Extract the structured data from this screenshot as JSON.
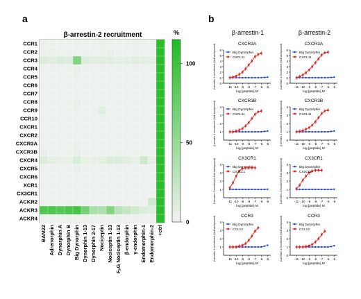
{
  "panel_labels": {
    "a": "a",
    "b": "b"
  },
  "colors": {
    "heat_low": "#f2f2f2",
    "heat_high": "#22bb22",
    "red_series": "#e0231f",
    "blue_series": "#2340d0"
  },
  "chart_data": [
    {
      "type": "heatmap",
      "title": "β-arrestin-2 recruitment",
      "rows": [
        "CCR1",
        "CCR2",
        "CCR3",
        "CCR4",
        "CCR5",
        "CCR6",
        "CCR7",
        "CCR8",
        "CCR9",
        "CCR10",
        "CXCR1",
        "CXCR2",
        "CXCR3A",
        "CXCR3B",
        "CXCR4",
        "CXCR5",
        "CXCR6",
        "XCR1",
        "CX3CR1",
        "ACKR2",
        "ACKR3",
        "ACKR4"
      ],
      "columns": [
        "BAM22",
        "Adrenorphin",
        "Dynorphin A",
        "Dynorphin B",
        "Big Dynorphin",
        "Dynorphin 1-13",
        "Dynorphin 2-17",
        "Nociceptin",
        "Nociceptin 1-13",
        "FₚG Nociceptin 1-13",
        "β-endorphin",
        "γ-endorphin",
        "Endomorphin-1",
        "Endomorphin-2",
        "+ctrl"
      ],
      "values": [
        [
          4,
          3,
          3,
          3,
          4,
          3,
          3,
          4,
          3,
          3,
          3,
          4,
          3,
          3,
          110
        ],
        [
          3,
          4,
          3,
          3,
          3,
          3,
          3,
          3,
          4,
          3,
          3,
          3,
          3,
          3,
          110
        ],
        [
          12,
          10,
          14,
          12,
          62,
          12,
          10,
          10,
          10,
          8,
          8,
          10,
          9,
          8,
          110
        ],
        [
          3,
          3,
          3,
          3,
          4,
          3,
          3,
          3,
          3,
          3,
          3,
          3,
          3,
          3,
          110
        ],
        [
          3,
          3,
          3,
          3,
          4,
          3,
          3,
          3,
          3,
          3,
          3,
          3,
          3,
          3,
          110
        ],
        [
          3,
          3,
          3,
          3,
          3,
          3,
          3,
          3,
          3,
          3,
          3,
          3,
          3,
          3,
          110
        ],
        [
          3,
          3,
          3,
          3,
          3,
          3,
          3,
          3,
          3,
          3,
          3,
          3,
          3,
          3,
          110
        ],
        [
          3,
          3,
          3,
          3,
          4,
          3,
          3,
          3,
          3,
          3,
          3,
          3,
          3,
          3,
          110
        ],
        [
          3,
          3,
          3,
          3,
          4,
          3,
          3,
          10,
          3,
          3,
          3,
          3,
          3,
          3,
          110
        ],
        [
          3,
          3,
          3,
          3,
          3,
          3,
          3,
          3,
          3,
          3,
          3,
          3,
          3,
          3,
          110
        ],
        [
          3,
          3,
          3,
          3,
          3,
          3,
          3,
          3,
          3,
          3,
          3,
          3,
          3,
          3,
          110
        ],
        [
          3,
          3,
          3,
          3,
          3,
          3,
          3,
          3,
          3,
          3,
          3,
          3,
          3,
          3,
          110
        ],
        [
          3,
          3,
          3,
          3,
          4,
          3,
          3,
          3,
          3,
          3,
          3,
          3,
          3,
          3,
          110
        ],
        [
          4,
          3,
          3,
          3,
          4,
          3,
          3,
          3,
          3,
          3,
          3,
          3,
          3,
          3,
          110
        ],
        [
          12,
          8,
          6,
          6,
          14,
          6,
          6,
          8,
          12,
          12,
          10,
          6,
          20,
          8,
          110
        ],
        [
          3,
          3,
          3,
          3,
          4,
          3,
          3,
          3,
          3,
          3,
          3,
          3,
          3,
          3,
          110
        ],
        [
          3,
          3,
          3,
          3,
          3,
          3,
          3,
          3,
          3,
          3,
          3,
          3,
          3,
          3,
          110
        ],
        [
          3,
          3,
          3,
          3,
          3,
          3,
          3,
          3,
          3,
          3,
          3,
          3,
          3,
          3,
          110
        ],
        [
          3,
          3,
          3,
          3,
          3,
          3,
          3,
          3,
          3,
          3,
          3,
          3,
          3,
          3,
          110
        ],
        [
          3,
          3,
          3,
          3,
          3,
          3,
          3,
          3,
          3,
          3,
          3,
          3,
          3,
          20,
          110
        ],
        [
          90,
          92,
          88,
          90,
          95,
          70,
          40,
          38,
          60,
          32,
          25,
          18,
          12,
          10,
          110
        ],
        [
          3,
          3,
          3,
          3,
          3,
          3,
          3,
          3,
          3,
          3,
          3,
          3,
          3,
          3,
          110
        ]
      ],
      "colorbar": {
        "title": "%",
        "ticks": [
          0,
          50,
          100
        ],
        "range": [
          0,
          115
        ]
      }
    },
    {
      "type": "line",
      "column_titles": [
        "β-arrestin-1",
        "β-arrestin-2"
      ],
      "ylabel": "β-arrestin-1 recruitment (fold background)",
      "xlabel": "log [peptide]  M",
      "xticks": [
        -11,
        -10,
        -9,
        -8,
        -7,
        -6,
        -5
      ],
      "x": [
        -11,
        -10.5,
        -10,
        -9.5,
        -9,
        -8.5,
        -8,
        -7.5,
        -7,
        -6.5,
        -6,
        -5.5,
        -5
      ],
      "panels": [
        {
          "title": "CXCR3A",
          "col": 0,
          "row": 0,
          "yticks": [
            0,
            1,
            2,
            3,
            4,
            5,
            6
          ],
          "ylim": [
            0,
            6
          ],
          "series": [
            {
              "name": "Big Dynorphin",
              "values": [
                1,
                1,
                1,
                1,
                1,
                1,
                1,
                1,
                1,
                1,
                1,
                1.05,
                1.1
              ]
            },
            {
              "name": "CXCL11",
              "values": [
                1,
                1.1,
                1.3,
                1.6,
                2,
                2.6,
                3.3,
                4,
                4.8,
                5.2,
                5.4,
                null,
                null
              ]
            }
          ]
        },
        {
          "title": "CXCR3A",
          "col": 1,
          "row": 0,
          "yticks": [
            0,
            1,
            2,
            3,
            4,
            5,
            6
          ],
          "ylim": [
            0,
            6
          ],
          "series": [
            {
              "name": "Big Dynorphin",
              "values": [
                1,
                1,
                1,
                1,
                1,
                1,
                1,
                1,
                1,
                1,
                1,
                1.05,
                1.1
              ]
            },
            {
              "name": "CXCL11",
              "values": [
                1,
                1.2,
                1.5,
                1.9,
                2.4,
                3,
                3.7,
                4.4,
                5.1,
                5.5,
                5.6,
                null,
                null
              ]
            }
          ]
        },
        {
          "title": "CXCR3B",
          "col": 0,
          "row": 1,
          "yticks": [
            1,
            2,
            3,
            4
          ],
          "ylim": [
            0,
            4
          ],
          "series": [
            {
              "name": "Big Dynorphin",
              "values": [
                1,
                1,
                1,
                1,
                1,
                1,
                1,
                1,
                1,
                1,
                1,
                1.05,
                1.1
              ]
            },
            {
              "name": "CXCL11",
              "values": [
                1,
                1,
                1.1,
                1.2,
                1.4,
                1.7,
                2.1,
                2.6,
                3.1,
                3.4,
                3.5,
                null,
                null
              ]
            }
          ]
        },
        {
          "title": "CXCR3B",
          "col": 1,
          "row": 1,
          "yticks": [
            0,
            1,
            2,
            3,
            4
          ],
          "ylim": [
            0,
            4
          ],
          "series": [
            {
              "name": "Big Dynorphin",
              "values": [
                1,
                1,
                1,
                1,
                1,
                1,
                1,
                1,
                1,
                1,
                1,
                1.05,
                1.1
              ]
            },
            {
              "name": "CXCL11",
              "values": [
                1,
                1.05,
                1.15,
                1.3,
                1.5,
                1.8,
                2.2,
                2.7,
                3.2,
                3.5,
                3.6,
                null,
                null
              ]
            }
          ]
        },
        {
          "title": "CX3CR1",
          "col": 0,
          "row": 2,
          "yticks": [
            1,
            2,
            3,
            4
          ],
          "ylim": [
            0,
            4
          ],
          "series": [
            {
              "name": "Big Dynorphin",
              "values": [
                1,
                1,
                1,
                1,
                1,
                1,
                1,
                1,
                1,
                1,
                1,
                1,
                1.02
              ]
            },
            {
              "name": "CX3CL1",
              "values": [
                1.2,
                1.8,
                2.6,
                3.2,
                3.5,
                3.6,
                3.6,
                3.6,
                3.6,
                null,
                null,
                null,
                null
              ]
            }
          ]
        },
        {
          "title": "CX3CR1",
          "col": 1,
          "row": 2,
          "yticks": [
            0,
            1,
            2,
            3,
            4
          ],
          "ylim": [
            0,
            4
          ],
          "series": [
            {
              "name": "Big Dynorphin",
              "values": [
                1,
                1,
                1,
                1,
                1,
                1,
                1,
                1,
                1,
                1,
                1,
                1,
                1.02
              ]
            },
            {
              "name": "CX3CL1",
              "values": [
                1.1,
                1.5,
                2.1,
                2.6,
                3,
                3.2,
                3.3,
                3.3,
                3.3,
                null,
                null,
                null,
                null
              ]
            }
          ]
        },
        {
          "title": "CCR3",
          "col": 0,
          "row": 3,
          "yticks": [
            1,
            2,
            3,
            4
          ],
          "ylim": [
            0,
            4
          ],
          "series": [
            {
              "name": "Big Dynorphin",
              "values": [
                1,
                1,
                1,
                1,
                1,
                1,
                1,
                1,
                1,
                1,
                1,
                1.1,
                1.2
              ]
            },
            {
              "name": "CCL13",
              "values": [
                1,
                1,
                1,
                1.1,
                1.2,
                1.4,
                1.8,
                2.3,
                2.9,
                3.3,
                null,
                null,
                null
              ]
            }
          ]
        },
        {
          "title": "CCR3",
          "col": 1,
          "row": 3,
          "yticks": [
            0,
            1,
            2,
            3,
            4
          ],
          "ylim": [
            0,
            4
          ],
          "series": [
            {
              "name": "Big Dynorphin",
              "values": [
                1,
                1,
                1,
                1,
                1,
                1,
                1,
                1,
                1,
                1,
                1,
                1.05,
                1.15
              ]
            },
            {
              "name": "CCL13",
              "values": [
                1,
                1,
                1,
                1.05,
                1.15,
                1.3,
                1.6,
                2,
                2.5,
                2.9,
                null,
                null,
                null
              ]
            }
          ]
        }
      ]
    }
  ]
}
